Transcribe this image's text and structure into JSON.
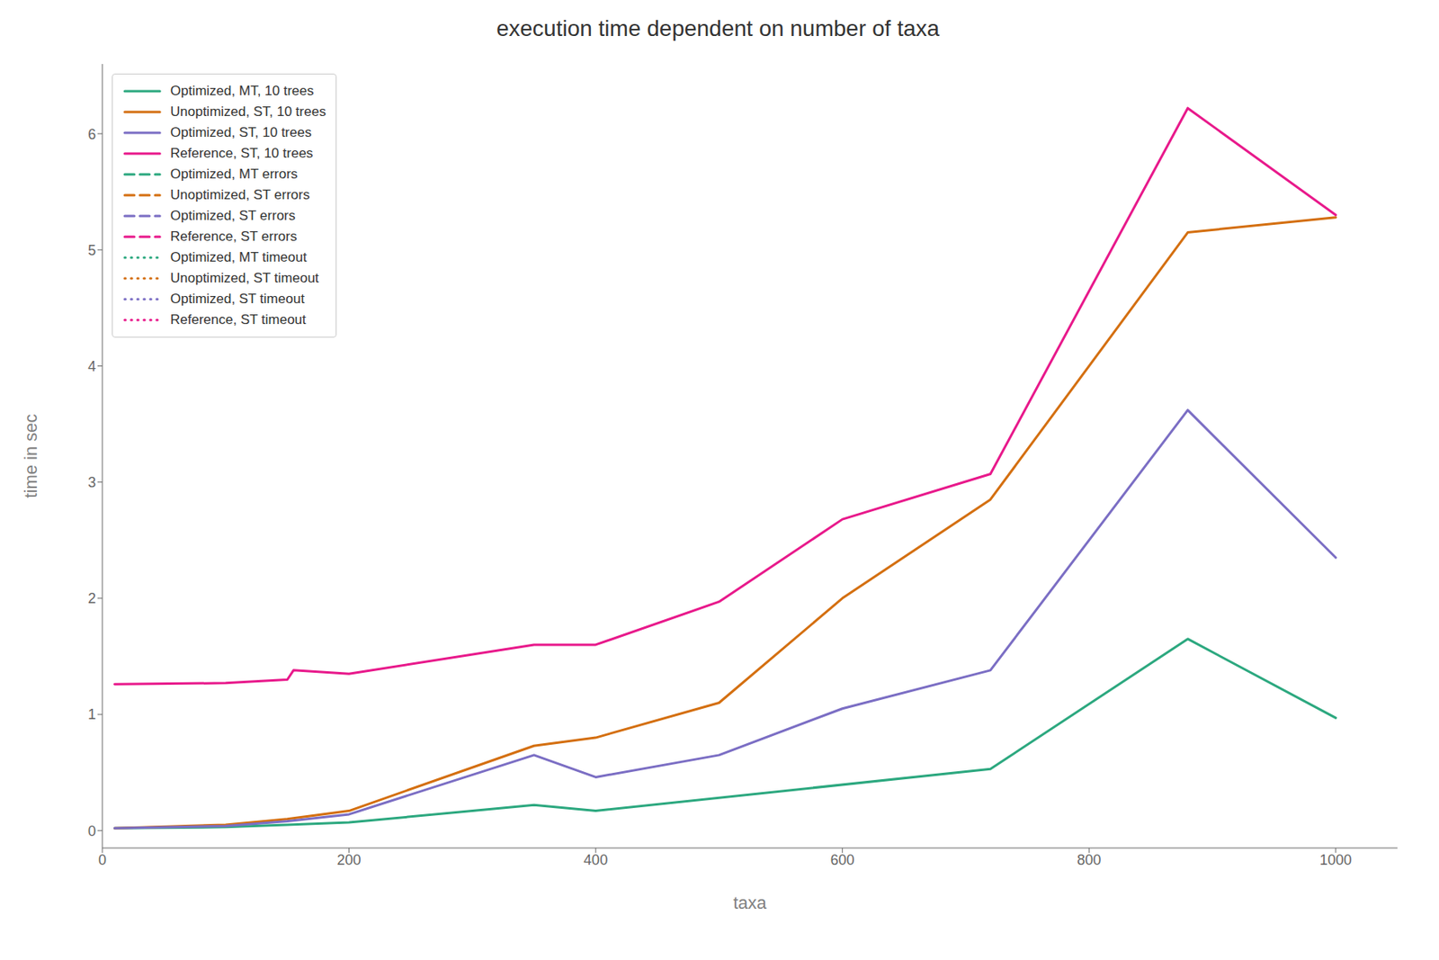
{
  "chart_data": {
    "type": "line",
    "title": "execution time dependent on number of taxa",
    "xlabel": "taxa",
    "ylabel": "time in sec",
    "xlim": [
      0,
      1050
    ],
    "ylim": [
      -0.15,
      6.6
    ],
    "xticks": [
      0,
      200,
      400,
      600,
      800,
      1000
    ],
    "yticks": [
      0,
      1,
      2,
      3,
      4,
      5,
      6
    ],
    "grid": false,
    "legend": "upper left",
    "series": [
      {
        "name": "Optimized, MT, 10 trees",
        "color": "#2ca87f",
        "line_style": "solid",
        "x": [
          10,
          100,
          150,
          200,
          350,
          400,
          720,
          880,
          1000
        ],
        "values": [
          0.02,
          0.03,
          0.05,
          0.07,
          0.22,
          0.17,
          0.53,
          1.65,
          0.97
        ]
      },
      {
        "name": "Unoptimized, ST, 10 trees",
        "color": "#d46f10",
        "line_style": "solid",
        "x": [
          10,
          100,
          150,
          200,
          350,
          400,
          500,
          600,
          720,
          880,
          1000
        ],
        "values": [
          0.02,
          0.05,
          0.1,
          0.17,
          0.73,
          0.8,
          1.1,
          2.0,
          2.85,
          5.15,
          5.28
        ]
      },
      {
        "name": "Optimized, ST, 10 trees",
        "color": "#7b6ec4",
        "line_style": "solid",
        "x": [
          10,
          100,
          150,
          200,
          350,
          400,
          500,
          600,
          720,
          880,
          1000
        ],
        "values": [
          0.02,
          0.04,
          0.08,
          0.14,
          0.65,
          0.46,
          0.65,
          1.05,
          1.38,
          3.62,
          2.35
        ]
      },
      {
        "name": "Reference, ST, 10 trees",
        "color": "#e8198b",
        "line_style": "solid",
        "x": [
          10,
          100,
          150,
          155,
          200,
          350,
          400,
          500,
          600,
          720,
          880,
          1000
        ],
        "values": [
          1.26,
          1.27,
          1.3,
          1.38,
          1.35,
          1.6,
          1.6,
          1.97,
          2.68,
          3.07,
          6.22,
          5.3
        ]
      },
      {
        "name": "Optimized, MT errors",
        "color": "#2ca87f",
        "line_style": "dashed",
        "x": [],
        "values": []
      },
      {
        "name": "Unoptimized, ST errors",
        "color": "#d46f10",
        "line_style": "dashed",
        "x": [],
        "values": []
      },
      {
        "name": "Optimized, ST errors",
        "color": "#7b6ec4",
        "line_style": "dashed",
        "x": [],
        "values": []
      },
      {
        "name": "Reference, ST errors",
        "color": "#e8198b",
        "line_style": "dashed",
        "x": [],
        "values": []
      },
      {
        "name": "Optimized, MT timeout",
        "color": "#2ca87f",
        "line_style": "dotted",
        "x": [],
        "values": []
      },
      {
        "name": "Unoptimized, ST timeout",
        "color": "#d46f10",
        "line_style": "dotted",
        "x": [],
        "values": []
      },
      {
        "name": "Optimized, ST timeout",
        "color": "#7b6ec4",
        "line_style": "dotted",
        "x": [],
        "values": []
      },
      {
        "name": "Reference, ST timeout",
        "color": "#e8198b",
        "line_style": "dotted",
        "x": [],
        "values": []
      }
    ]
  }
}
